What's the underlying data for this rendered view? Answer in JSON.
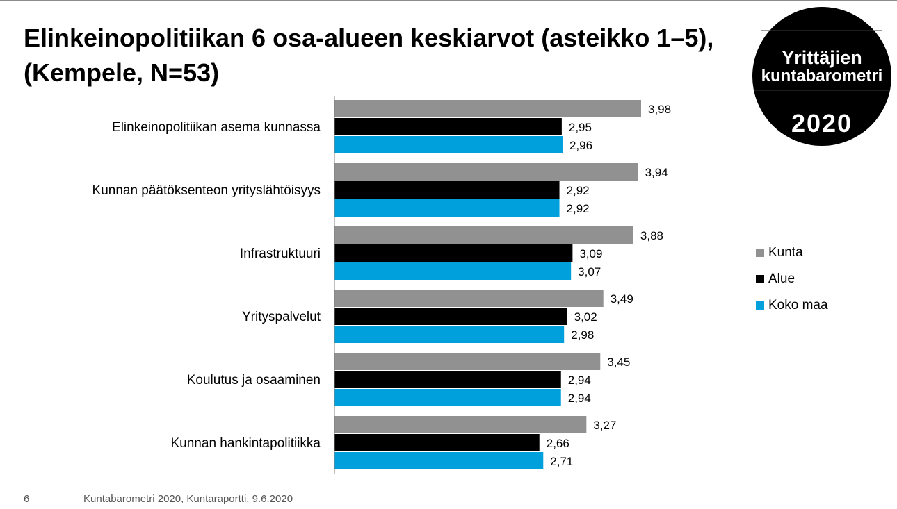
{
  "slide": {
    "title_line1": "Elinkeinopolitiikan 6 osa-alueen keskiarvot (asteikko 1–5),",
    "title_line2": "(Kempele, N=53)",
    "page_number": "6",
    "footer": "Kuntabarometri 2020, Kuntaraportti, 9.6.2020"
  },
  "logo": {
    "line1": "Yrittäjien",
    "line2": "kuntabarometri",
    "year": "2020"
  },
  "chart_data": {
    "type": "bar",
    "orientation": "horizontal",
    "categories": [
      "Elinkeinopolitiikan asema kunnassa",
      "Kunnan päätöksenteon yrityslähtöisyys",
      "Infrastruktuuri",
      "Yrityspalvelut",
      "Koulutus ja osaaminen",
      "Kunnan hankintapolitiikka"
    ],
    "series": [
      {
        "name": "Kunta",
        "color": "#919191",
        "values": [
          3.98,
          3.94,
          3.88,
          3.49,
          3.45,
          3.27
        ],
        "labels": [
          "3,98",
          "3,94",
          "3,88",
          "3,49",
          "3,45",
          "3,27"
        ]
      },
      {
        "name": "Alue",
        "color": "#000000",
        "values": [
          2.95,
          2.92,
          3.09,
          3.02,
          2.94,
          2.66
        ],
        "labels": [
          "2,95",
          "2,92",
          "3,09",
          "3,02",
          "2,94",
          "2,66"
        ]
      },
      {
        "name": "Koko maa",
        "color": "#00a0dc",
        "values": [
          2.96,
          2.92,
          3.07,
          2.98,
          2.94,
          2.71
        ],
        "labels": [
          "2,96",
          "2,92",
          "3,07",
          "2,98",
          "2,94",
          "2,71"
        ]
      }
    ],
    "xlim": [
      0,
      5
    ],
    "legend_position": "right",
    "grid": false
  }
}
